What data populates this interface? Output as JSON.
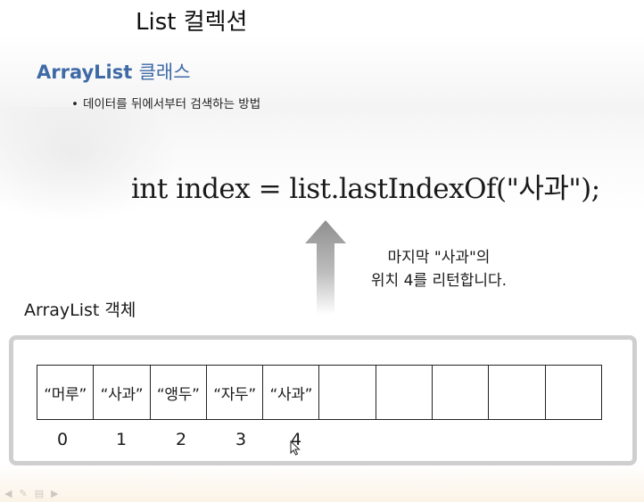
{
  "slide": {
    "title": "List 컬렉션",
    "subtitle_en": "ArrayList",
    "subtitle_ko": "클래스",
    "bullet": "데이터를 뒤에서부터 검색하는 방법",
    "code": "int index = list.lastIndexOf(\"사과\");",
    "note_line1": "마지막 \"사과\"의",
    "note_line2": "위치 4를 리턴합니다.",
    "object_label": "ArrayList 객체"
  },
  "array": {
    "cells": [
      "“머루”",
      "“사과”",
      "“앵두”",
      "“자두”",
      "“사과”",
      "",
      "",
      "",
      "",
      ""
    ],
    "indices": [
      "0",
      "1",
      "2",
      "3",
      "4"
    ]
  },
  "footer": {
    "icons": [
      "prev-icon",
      "pen-icon",
      "menu-icon",
      "next-icon"
    ]
  }
}
